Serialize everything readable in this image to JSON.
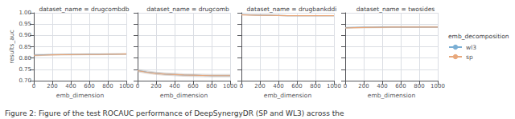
{
  "caption": "Figure 2: Figure of the test ROCAUC performance of DeepSynergyDR (SP and WL3) across the",
  "chart_data": [
    {
      "type": "line",
      "title": "dataset_name = drugcombdb",
      "x_label": "emb_dimension",
      "y_label": "results_auc",
      "x": [
        0,
        100,
        200,
        300,
        400,
        500,
        600,
        700,
        800,
        900,
        1000
      ],
      "series": [
        {
          "name": "wl3",
          "color": "#7bafd4",
          "values": [
            0.813,
            0.814,
            0.815,
            0.815,
            0.816,
            0.816,
            0.817,
            0.817,
            0.817,
            0.818,
            0.818
          ],
          "low": [
            0.808,
            0.81,
            0.811,
            0.811,
            0.812,
            0.812,
            0.813,
            0.813,
            0.813,
            0.814,
            0.814
          ],
          "high": [
            0.818,
            0.818,
            0.819,
            0.819,
            0.82,
            0.82,
            0.821,
            0.821,
            0.821,
            0.822,
            0.822
          ]
        },
        {
          "name": "sp",
          "color": "#e8a87c",
          "values": [
            0.812,
            0.813,
            0.814,
            0.815,
            0.815,
            0.816,
            0.816,
            0.816,
            0.817,
            0.817,
            0.818
          ],
          "low": [
            0.807,
            0.809,
            0.81,
            0.811,
            0.811,
            0.812,
            0.812,
            0.812,
            0.813,
            0.813,
            0.813
          ],
          "high": [
            0.817,
            0.817,
            0.818,
            0.819,
            0.819,
            0.82,
            0.82,
            0.82,
            0.821,
            0.821,
            0.823
          ]
        }
      ],
      "xlim": [
        0,
        1000
      ],
      "xticks": [
        0,
        200,
        400,
        600,
        800,
        1000
      ],
      "ylim": [
        0.7,
        1.0
      ],
      "yticks": [
        {
          "value": 0.7,
          "label": "0.70"
        },
        {
          "value": 0.75,
          "label": "0.75"
        },
        {
          "value": 0.8,
          "label": "0.80"
        },
        {
          "value": 0.85,
          "label": "0.85"
        },
        {
          "value": 0.9,
          "label": "0.90"
        },
        {
          "value": 0.95,
          "label": "0.95"
        },
        {
          "value": 1.0,
          "label": "1.00"
        }
      ],
      "grid": true
    },
    {
      "type": "line",
      "title": "dataset_name = drugcomb",
      "x_label": "emb_dimension",
      "x": [
        0,
        100,
        200,
        300,
        400,
        500,
        600,
        700,
        800,
        900,
        1000
      ],
      "series": [
        {
          "name": "wl3",
          "color": "#7bafd4",
          "values": [
            0.745,
            0.738,
            0.733,
            0.729,
            0.727,
            0.725,
            0.724,
            0.723,
            0.722,
            0.722,
            0.722
          ],
          "low": [
            0.738,
            0.731,
            0.726,
            0.722,
            0.72,
            0.718,
            0.717,
            0.716,
            0.715,
            0.715,
            0.715
          ],
          "high": [
            0.752,
            0.745,
            0.74,
            0.736,
            0.734,
            0.732,
            0.731,
            0.73,
            0.729,
            0.729,
            0.729
          ]
        },
        {
          "name": "sp",
          "color": "#e8a87c",
          "values": [
            0.744,
            0.737,
            0.732,
            0.729,
            0.727,
            0.725,
            0.724,
            0.723,
            0.722,
            0.722,
            0.722
          ],
          "low": [
            0.737,
            0.73,
            0.725,
            0.722,
            0.72,
            0.718,
            0.717,
            0.716,
            0.715,
            0.715,
            0.715
          ],
          "high": [
            0.751,
            0.744,
            0.739,
            0.736,
            0.734,
            0.732,
            0.731,
            0.73,
            0.729,
            0.729,
            0.729
          ]
        }
      ],
      "xlim": [
        0,
        1000
      ],
      "xticks": [
        0,
        200,
        400,
        600,
        800,
        1000
      ],
      "ylim": [
        0.7,
        1.0
      ],
      "yticks": [
        0.7,
        0.75,
        0.8,
        0.85,
        0.9,
        0.95,
        1.0
      ],
      "tick_labels": "x",
      "grid": true
    },
    {
      "type": "line",
      "title": "dataset_name = drugbankddi",
      "x_label": "emb_dimension",
      "x": [
        0,
        100,
        200,
        300,
        400,
        500,
        600,
        700,
        800,
        900,
        1000
      ],
      "series": [
        {
          "name": "wl3",
          "color": "#7bafd4",
          "values": [
            0.992,
            0.991,
            0.99,
            0.989,
            0.988,
            0.987,
            0.987,
            0.987,
            0.987,
            0.987,
            0.987
          ],
          "low": [
            0.99,
            0.989,
            0.988,
            0.987,
            0.986,
            0.985,
            0.985,
            0.985,
            0.985,
            0.985,
            0.985
          ],
          "high": [
            0.994,
            0.993,
            0.992,
            0.991,
            0.99,
            0.989,
            0.989,
            0.989,
            0.989,
            0.989,
            0.989
          ]
        },
        {
          "name": "sp",
          "color": "#e8a87c",
          "values": [
            0.991,
            0.99,
            0.989,
            0.989,
            0.988,
            0.987,
            0.987,
            0.987,
            0.987,
            0.987,
            0.987
          ],
          "low": [
            0.989,
            0.988,
            0.987,
            0.987,
            0.986,
            0.985,
            0.985,
            0.985,
            0.985,
            0.985,
            0.985
          ],
          "high": [
            0.993,
            0.992,
            0.991,
            0.991,
            0.99,
            0.989,
            0.989,
            0.989,
            0.989,
            0.989,
            0.989
          ]
        }
      ],
      "xlim": [
        0,
        1000
      ],
      "xticks": [
        0,
        200,
        400,
        600,
        800,
        1000
      ],
      "ylim": [
        0.7,
        1.0
      ],
      "yticks": [
        0.7,
        0.75,
        0.8,
        0.85,
        0.9,
        0.95,
        1.0
      ],
      "tick_labels": "x",
      "grid": true
    },
    {
      "type": "line",
      "title": "dataset_name = twosides",
      "x_label": "emb_dimension",
      "x": [
        0,
        100,
        200,
        300,
        400,
        500,
        600,
        700,
        800,
        900,
        1000
      ],
      "series": [
        {
          "name": "wl3",
          "color": "#7bafd4",
          "values": [
            0.934,
            0.935,
            0.936,
            0.936,
            0.937,
            0.937,
            0.937,
            0.937,
            0.937,
            0.937,
            0.937
          ],
          "low": [
            0.93,
            0.931,
            0.932,
            0.932,
            0.933,
            0.933,
            0.933,
            0.933,
            0.933,
            0.933,
            0.933
          ],
          "high": [
            0.938,
            0.939,
            0.94,
            0.94,
            0.941,
            0.941,
            0.941,
            0.941,
            0.941,
            0.941,
            0.941
          ]
        },
        {
          "name": "sp",
          "color": "#e8a87c",
          "values": [
            0.933,
            0.934,
            0.935,
            0.936,
            0.936,
            0.937,
            0.937,
            0.937,
            0.937,
            0.937,
            0.937
          ],
          "low": [
            0.929,
            0.93,
            0.931,
            0.932,
            0.932,
            0.933,
            0.933,
            0.933,
            0.933,
            0.933,
            0.933
          ],
          "high": [
            0.937,
            0.938,
            0.939,
            0.94,
            0.94,
            0.941,
            0.941,
            0.941,
            0.941,
            0.941,
            0.941
          ]
        }
      ],
      "xlim": [
        0,
        1000
      ],
      "xticks": [
        0,
        200,
        400,
        600,
        800,
        1000
      ],
      "ylim": [
        0.7,
        1.0
      ],
      "yticks": [
        0.7,
        0.75,
        0.8,
        0.85,
        0.9,
        0.95,
        1.0
      ],
      "tick_labels": "x",
      "grid": true,
      "legend": "right",
      "legend_title": "emb_decomposition"
    }
  ]
}
